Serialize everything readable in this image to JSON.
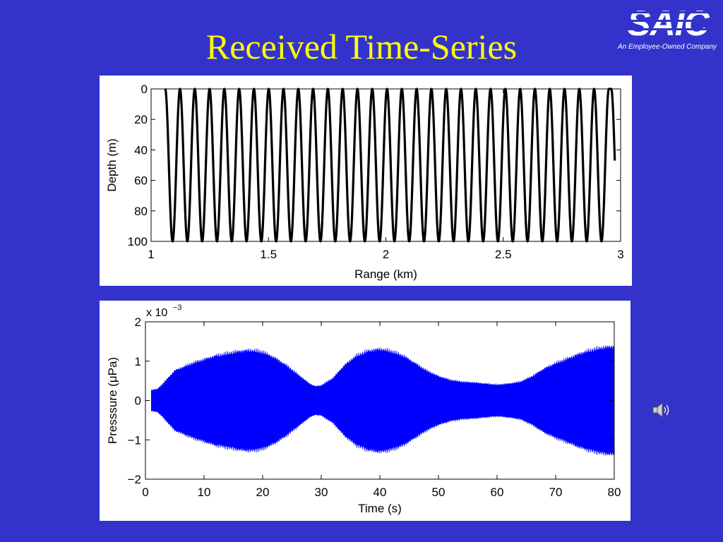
{
  "slide": {
    "title": "Received Time-Series",
    "logo_text": "SAIC",
    "logo_tagline": "An Employee-Owned Company",
    "speaker_icon": "speaker-icon"
  },
  "colors": {
    "background": "#3333cc",
    "title": "#ffff00",
    "plot_line_top": "#000000",
    "plot_line_bottom": "#0000ff"
  },
  "chart_data": [
    {
      "type": "line",
      "xlabel": "Range (km)",
      "ylabel": "Depth (m)",
      "xlim": [
        1,
        3
      ],
      "ylim": [
        0,
        100
      ],
      "y_reversed": true,
      "xticks": [
        1,
        1.5,
        2,
        2.5,
        3
      ],
      "xtick_labels": [
        "1",
        "1.5",
        "2",
        "2.5",
        "3"
      ],
      "yticks": [
        0,
        20,
        40,
        60,
        80,
        100
      ],
      "ytick_labels": [
        "0",
        "20",
        "40",
        "60",
        "80",
        "100"
      ],
      "grid": false,
      "series": [
        {
          "x_start": 1.06,
          "x_end": 2.95,
          "depth_min": 0,
          "depth_max": 100,
          "cycles": 30,
          "end_depth": 47
        }
      ]
    },
    {
      "type": "area",
      "xlabel": "Time (s)",
      "ylabel": "Presssure (μPa)",
      "y_multiplier_label": "x 10",
      "y_multiplier_exponent": "−3",
      "xlim": [
        0,
        80
      ],
      "ylim": [
        -2,
        2
      ],
      "xticks": [
        0,
        10,
        20,
        30,
        40,
        50,
        60,
        70,
        80
      ],
      "xtick_labels": [
        "0",
        "10",
        "20",
        "30",
        "40",
        "50",
        "60",
        "70",
        "80"
      ],
      "yticks": [
        2,
        1,
        0,
        -1,
        -2
      ],
      "ytick_labels": [
        "2",
        "1",
        "0",
        "−1",
        "−2"
      ],
      "grid": false,
      "series": [
        {
          "envelope_time": [
            1,
            2,
            3,
            5,
            8,
            12,
            16,
            18,
            20,
            22,
            24,
            26,
            28,
            29,
            30,
            32,
            34,
            36,
            38,
            40,
            42,
            44,
            46,
            48,
            50,
            52,
            54,
            56,
            58,
            60,
            62,
            64,
            66,
            68,
            70,
            72,
            74,
            76,
            78,
            80
          ],
          "envelope_amplitude": [
            0.28,
            0.3,
            0.45,
            0.8,
            1.0,
            1.2,
            1.32,
            1.35,
            1.3,
            1.15,
            0.95,
            0.7,
            0.45,
            0.38,
            0.4,
            0.6,
            0.95,
            1.2,
            1.33,
            1.38,
            1.32,
            1.2,
            1.0,
            0.8,
            0.65,
            0.55,
            0.5,
            0.48,
            0.45,
            0.42,
            0.45,
            0.5,
            0.65,
            0.85,
            1.0,
            1.12,
            1.25,
            1.35,
            1.42,
            1.45
          ]
        }
      ]
    }
  ]
}
